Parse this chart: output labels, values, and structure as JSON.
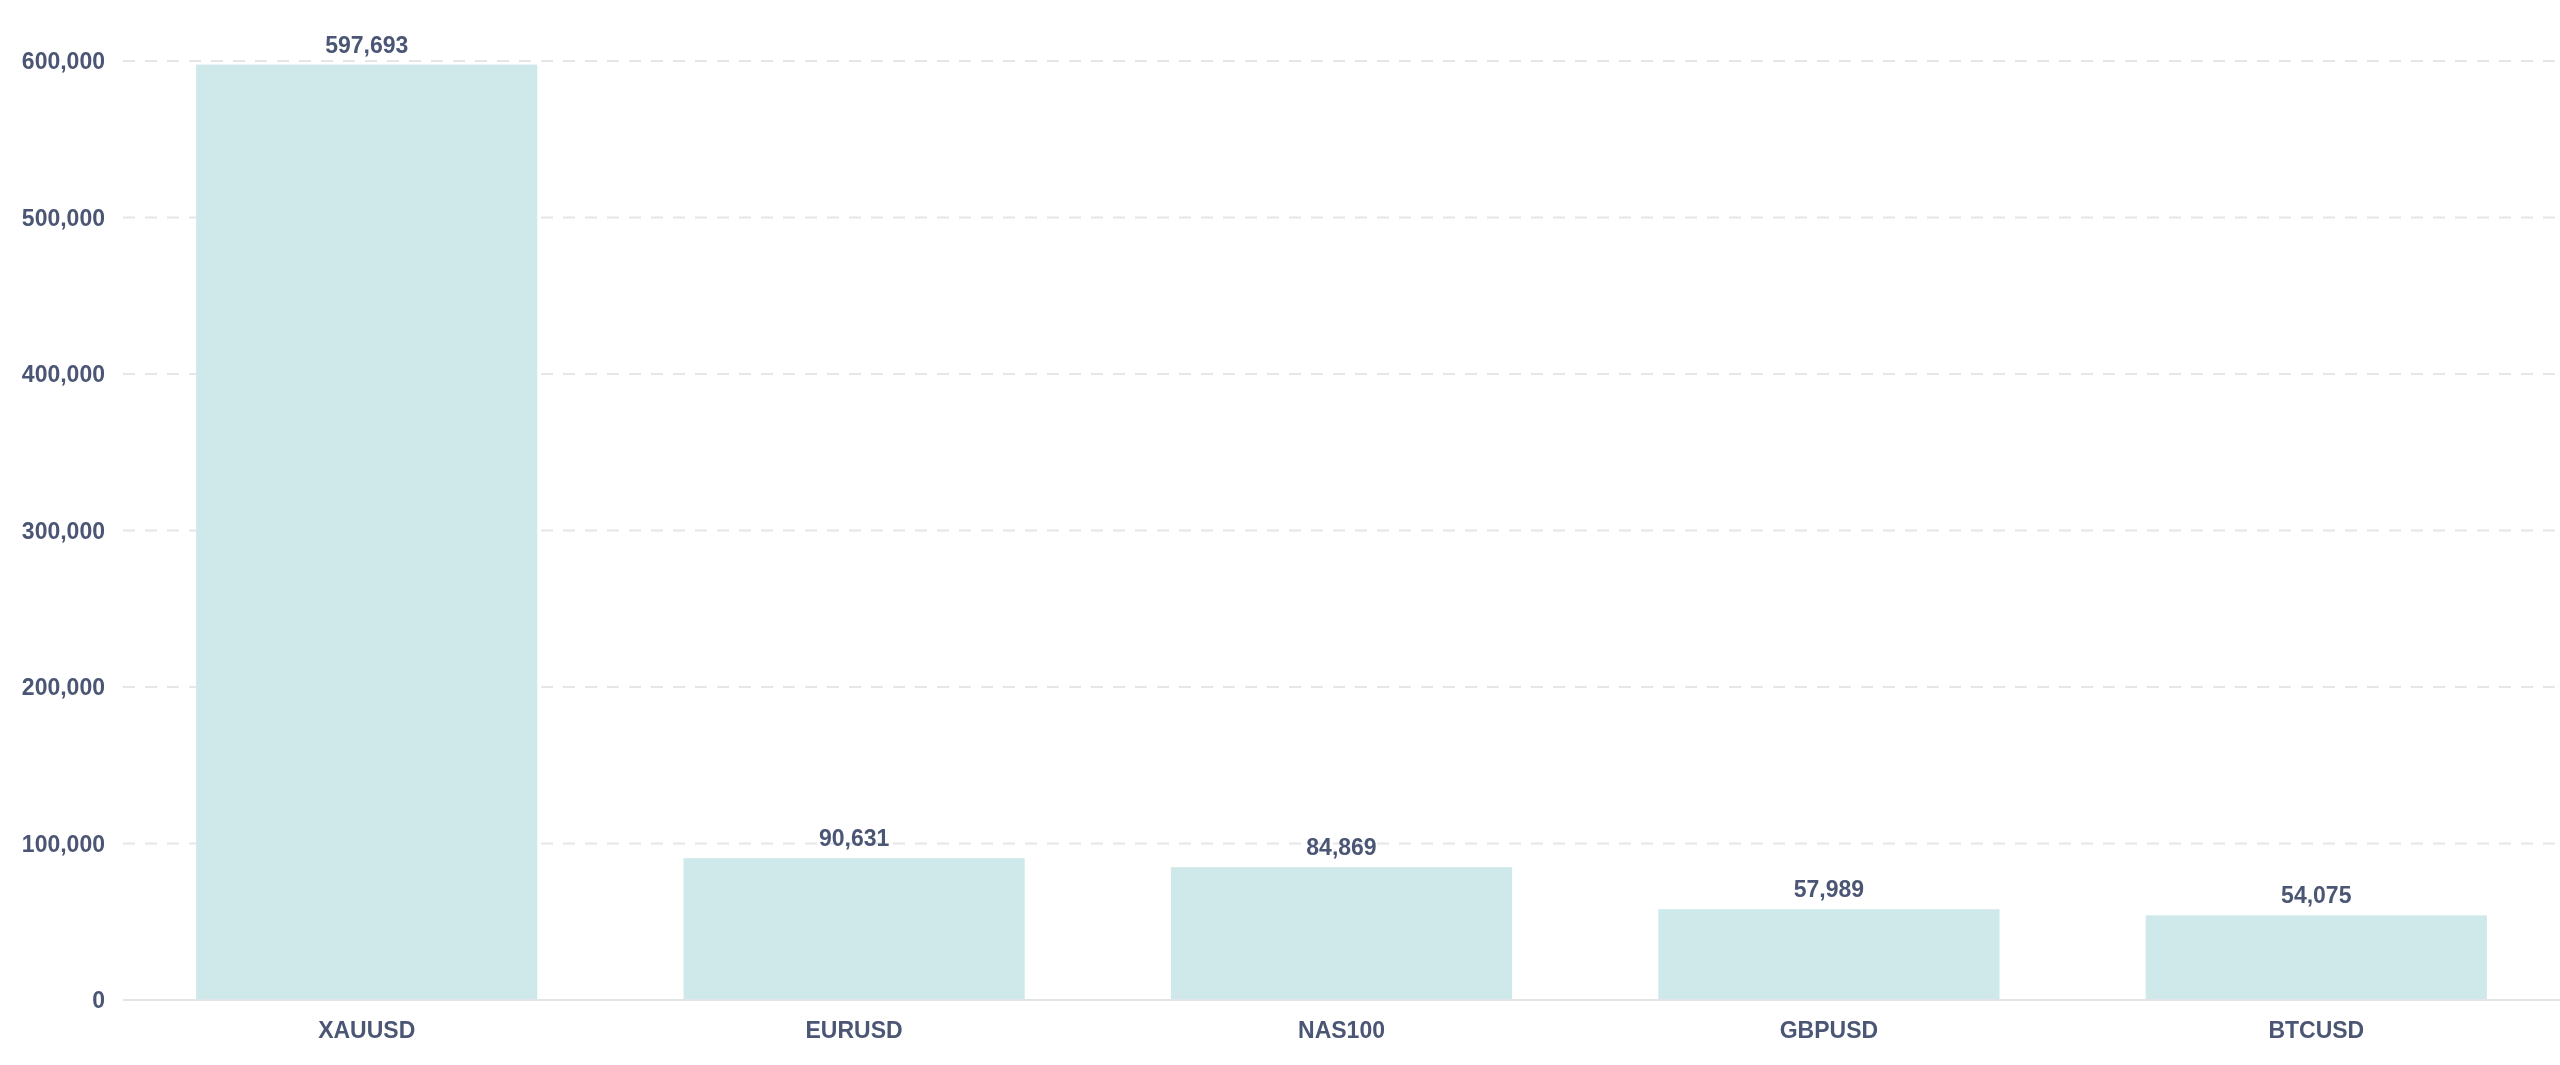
{
  "chart_data": {
    "type": "bar",
    "categories": [
      "XAUUSD",
      "EURUSD",
      "NAS100",
      "GBPUSD",
      "BTCUSD"
    ],
    "values": [
      597693,
      90631,
      84869,
      57989,
      54075
    ],
    "value_labels": [
      "597,693",
      "90,631",
      "84,869",
      "57,989",
      "54,075"
    ],
    "color": "#cfe8e9",
    "ylim": [
      0,
      600000
    ],
    "yticks": [
      {
        "value": 0,
        "label": "0"
      },
      {
        "value": 100000,
        "label": "100,000"
      },
      {
        "value": 200000,
        "label": "200,000"
      },
      {
        "value": 300000,
        "label": "300,000"
      },
      {
        "value": 400000,
        "label": "400,000"
      },
      {
        "value": 500000,
        "label": "500,000"
      },
      {
        "value": 600000,
        "label": "600,000"
      }
    ],
    "grid": "y"
  }
}
